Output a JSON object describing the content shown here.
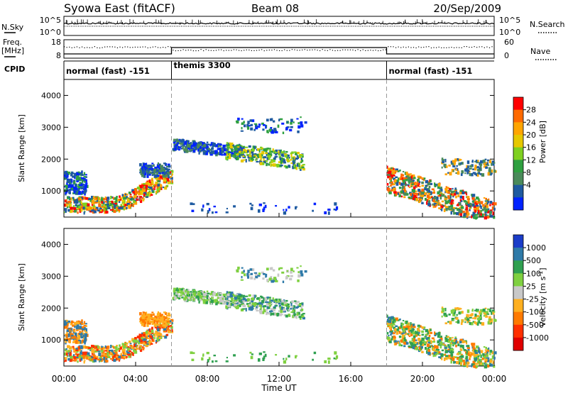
{
  "header": {
    "station": "Syowa East (fitACF)",
    "beam": "Beam 08",
    "date": "20/Sep/2009"
  },
  "top_panels": {
    "nsky_label": "N.Sky",
    "nsearch_label": "N.Search",
    "nsky_ticks": [
      "10^5",
      "10^0"
    ],
    "nsearch_ticks": [
      "10^5",
      "10^0"
    ],
    "freq_label_1": "Freq.",
    "freq_label_2": "[MHz]",
    "freq_ticks": [
      "18",
      "8"
    ],
    "nave_label": "Nave",
    "nave_ticks": [
      "60",
      "0"
    ],
    "cpid_label": "CPID",
    "modes": [
      {
        "label": "normal (fast) -151",
        "start_hour": 0,
        "end_hour": 6
      },
      {
        "label": "themis 3300",
        "start_hour": 6,
        "end_hour": 18
      },
      {
        "label": "normal (fast) -151",
        "start_hour": 18,
        "end_hour": 24
      }
    ]
  },
  "chart_data": [
    {
      "type": "heatmap",
      "ylabel": "Slant Range [km]",
      "yticks": [
        1000,
        2000,
        3000,
        4000
      ],
      "xlim_hours": [
        0,
        24
      ],
      "colorbar_label": "Power [dB]",
      "colorbar_ticks": [
        "28",
        "24",
        "20",
        "16",
        "12",
        "8",
        "4"
      ],
      "colorbar_colors": [
        "#ff0000",
        "#ff6a00",
        "#ffa500",
        "#e6c800",
        "#7fd020",
        "#2fa040",
        "#4a8a5a",
        "#1e5aa0",
        "#0022ff"
      ]
    },
    {
      "type": "heatmap",
      "ylabel": "Slant Range [km]",
      "yticks": [
        1000,
        2000,
        3000,
        4000
      ],
      "xlim_hours": [
        0,
        24
      ],
      "xlabel": "Time UT",
      "xticks": [
        "00:00",
        "04:00",
        "08:00",
        "12:00",
        "16:00",
        "20:00",
        "00:00"
      ],
      "colorbar_label": "Velocity [m s",
      "colorbar_label_sup": "-1",
      "colorbar_label_end": "]",
      "colorbar_ticks": [
        "1000",
        "500",
        "100",
        "25",
        "-25",
        "-100",
        "-500",
        "-1000"
      ],
      "colorbar_colors": [
        "#1a3cc8",
        "#2e7aa8",
        "#2fa050",
        "#7fd040",
        "#c8c8c8",
        "#ffb020",
        "#ff7a00",
        "#ff3000",
        "#e00000"
      ]
    }
  ]
}
